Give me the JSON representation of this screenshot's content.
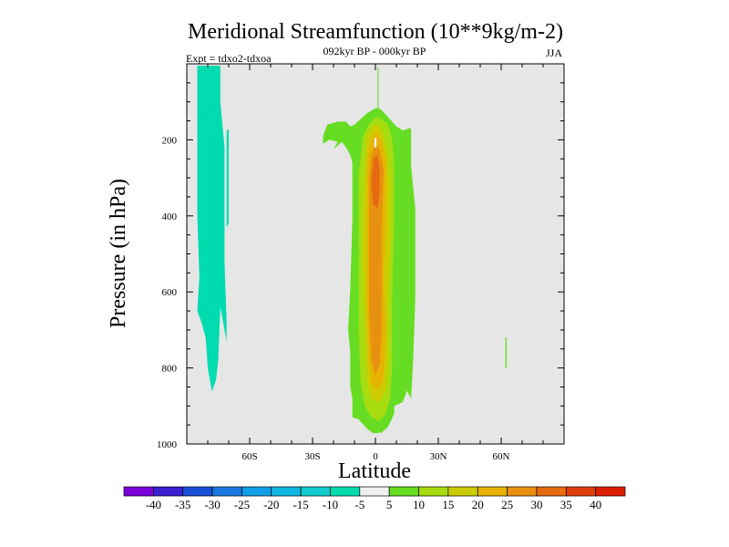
{
  "chart_data": {
    "type": "filled-contour",
    "title": "Meridional Streamfunction (10**9kg/m-2)",
    "subtitle": "092kyr BP - 000kyr BP",
    "experiment_label": "Expt = tdxo2-tdxoa",
    "season_label": "JJA",
    "xlabel": "Latitude",
    "ylabel": "Pressure (in hPa)",
    "xlim": [
      -90,
      90
    ],
    "ylim": [
      0,
      1000
    ],
    "y_inverted": true,
    "grid": false,
    "background_color": "#e6e6e6",
    "x_ticks": [
      {
        "value": -60,
        "label": "60S"
      },
      {
        "value": -30,
        "label": "30S"
      },
      {
        "value": 0,
        "label": "0"
      },
      {
        "value": 30,
        "label": "30N"
      },
      {
        "value": 60,
        "label": "60N"
      }
    ],
    "y_ticks": [
      {
        "value": 200,
        "label": "200"
      },
      {
        "value": 400,
        "label": "400"
      },
      {
        "value": 600,
        "label": "600"
      },
      {
        "value": 800,
        "label": "800"
      },
      {
        "value": 1000,
        "label": "1000"
      }
    ],
    "colorbar": {
      "labels": [
        "-40",
        "-35",
        "-30",
        "-25",
        "-20",
        "-15",
        "-10",
        "-5",
        "5",
        "10",
        "15",
        "20",
        "25",
        "30",
        "35",
        "40"
      ],
      "colors": [
        "#7a00dc",
        "#3a20d0",
        "#1a50d8",
        "#1a78e0",
        "#10a0e8",
        "#10b8e0",
        "#10ccd0",
        "#00dcb0",
        "#f0f0f0",
        "#66dd22",
        "#a6dc10",
        "#cccc00",
        "#e6b400",
        "#e89010",
        "#e66a10",
        "#e03c0a",
        "#dc1e00"
      ]
    },
    "regions": [
      {
        "level": "-10",
        "color": "#00dcb0",
        "points": [
          [
            -85,
            5
          ],
          [
            -74,
            5
          ],
          [
            -74,
            100
          ],
          [
            -72,
            220
          ],
          [
            -72,
            520
          ],
          [
            -71,
            680
          ],
          [
            -71,
            730
          ],
          [
            -72,
            700
          ],
          [
            -74,
            640
          ],
          [
            -75,
            780
          ],
          [
            -76,
            830
          ],
          [
            -78,
            862
          ],
          [
            -80,
            800
          ],
          [
            -81,
            720
          ],
          [
            -82,
            700
          ],
          [
            -83,
            680
          ],
          [
            -85,
            650
          ],
          [
            -84,
            560
          ],
          [
            -85,
            400
          ],
          [
            -85,
            100
          ]
        ]
      },
      {
        "level": "-10",
        "color": "#00dcb0",
        "points": [
          [
            -71,
            175
          ],
          [
            -70,
            172
          ],
          [
            -70,
            420
          ],
          [
            -71,
            430
          ]
        ]
      },
      {
        "level": "5",
        "color": "#66dd22",
        "points": [
          [
            -25,
            190
          ],
          [
            -23,
            160
          ],
          [
            -18,
            152
          ],
          [
            -14,
            152
          ],
          [
            -12,
            165
          ],
          [
            -10,
            160
          ],
          [
            -8,
            150
          ],
          [
            -4,
            130
          ],
          [
            -1,
            120
          ],
          [
            1,
            115
          ],
          [
            3,
            122
          ],
          [
            6,
            140
          ],
          [
            10,
            165
          ],
          [
            13,
            175
          ],
          [
            17,
            168
          ],
          [
            17,
            270
          ],
          [
            19,
            380
          ],
          [
            19,
            620
          ],
          [
            18,
            780
          ],
          [
            17,
            880
          ],
          [
            15,
            860
          ],
          [
            13,
            890
          ],
          [
            9,
            900
          ],
          [
            9,
            920
          ],
          [
            6,
            955
          ],
          [
            3,
            970
          ],
          [
            -1,
            972
          ],
          [
            -4,
            960
          ],
          [
            -8,
            935
          ],
          [
            -11,
            930
          ],
          [
            -11,
            880
          ],
          [
            -12,
            850
          ],
          [
            -12,
            760
          ],
          [
            -13,
            700
          ],
          [
            -12,
            590
          ],
          [
            -11,
            410
          ],
          [
            -11,
            260
          ],
          [
            -12,
            240
          ],
          [
            -14,
            220
          ],
          [
            -16,
            205
          ],
          [
            -20,
            225
          ],
          [
            -18,
            205
          ],
          [
            -22,
            200
          ],
          [
            -25,
            210
          ]
        ]
      },
      {
        "level": "5",
        "color": "#66dd22",
        "points": [
          [
            1,
            10
          ],
          [
            1.5,
            10
          ],
          [
            1.5,
            115
          ],
          [
            1,
            115
          ]
        ]
      },
      {
        "level": "5",
        "color": "#66dd22",
        "points": [
          [
            62,
            720
          ],
          [
            62.6,
            720
          ],
          [
            62.6,
            800
          ],
          [
            62,
            800
          ]
        ]
      },
      {
        "level": "10",
        "color": "#a6dc10",
        "points": [
          [
            -6,
            190
          ],
          [
            -3,
            160
          ],
          [
            0,
            140
          ],
          [
            3,
            145
          ],
          [
            6,
            160
          ],
          [
            8,
            200
          ],
          [
            9,
            260
          ],
          [
            9,
            420
          ],
          [
            8,
            600
          ],
          [
            8,
            800
          ],
          [
            7,
            880
          ],
          [
            5,
            920
          ],
          [
            2,
            940
          ],
          [
            -2,
            930
          ],
          [
            -5,
            900
          ],
          [
            -7,
            840
          ],
          [
            -8,
            700
          ],
          [
            -8,
            500
          ],
          [
            -8,
            300
          ]
        ]
      },
      {
        "level": "15",
        "color": "#cccc00",
        "points": [
          [
            -4,
            195
          ],
          [
            -2,
            170
          ],
          [
            0,
            158
          ],
          [
            2,
            165
          ],
          [
            4,
            190
          ],
          [
            6,
            240
          ],
          [
            7,
            320
          ],
          [
            7,
            480
          ],
          [
            6,
            640
          ],
          [
            6,
            780
          ],
          [
            5,
            860
          ],
          [
            2,
            890
          ],
          [
            -2,
            880
          ],
          [
            -4,
            830
          ],
          [
            -5,
            700
          ],
          [
            -6,
            540
          ],
          [
            -6,
            400
          ],
          [
            -5,
            280
          ]
        ]
      },
      {
        "level": "20",
        "color": "#e6b400",
        "points": [
          [
            -3,
            215
          ],
          [
            -1,
            185
          ],
          [
            1,
            182
          ],
          [
            3,
            205
          ],
          [
            5,
            260
          ],
          [
            5,
            420
          ],
          [
            4,
            560
          ],
          [
            5,
            700
          ],
          [
            4,
            830
          ],
          [
            1,
            860
          ],
          [
            -2,
            840
          ],
          [
            -3,
            780
          ],
          [
            -4,
            640
          ],
          [
            -4,
            500
          ],
          [
            -4,
            360
          ],
          [
            -4,
            270
          ]
        ]
      },
      {
        "level": "25",
        "color": "#e89010",
        "points": [
          [
            -2,
            240
          ],
          [
            0,
            212
          ],
          [
            2,
            225
          ],
          [
            4,
            280
          ],
          [
            3,
            420
          ],
          [
            3,
            560
          ],
          [
            3,
            700
          ],
          [
            2,
            790
          ],
          [
            0,
            820
          ],
          [
            -2,
            780
          ],
          [
            -3,
            660
          ],
          [
            -3,
            520
          ],
          [
            -3,
            390
          ],
          [
            -3,
            300
          ]
        ]
      },
      {
        "level": "30",
        "color": "#e66a10",
        "points": [
          [
            -1,
            250
          ],
          [
            1,
            240
          ],
          [
            2,
            275
          ],
          [
            2,
            340
          ],
          [
            1,
            380
          ],
          [
            -1,
            370
          ],
          [
            -2,
            320
          ]
        ]
      },
      {
        "level": "-5",
        "color": "#f0f0f0",
        "points": [
          [
            -0.5,
            195
          ],
          [
            0.5,
            195
          ],
          [
            0.5,
            220
          ],
          [
            -0.5,
            220
          ]
        ]
      }
    ]
  }
}
